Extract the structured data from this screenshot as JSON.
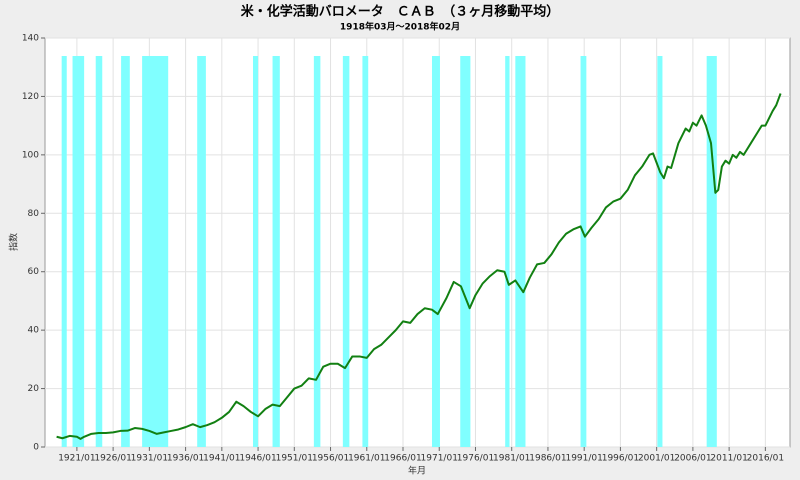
{
  "chart_data": {
    "type": "line",
    "title": "米・化学活動バロメータ　ＣＡＢ　（３ヶ月移動平均）",
    "subtitle": "1918年03月～2018年02月",
    "y_label": "指数",
    "x_label": "年月",
    "color": "#128012",
    "band_color": "#80ffff",
    "grid": true,
    "xlim": [
      1916.6,
      2019.4
    ],
    "ylim": [
      0,
      140
    ],
    "yticks": [
      0,
      20,
      40,
      60,
      80,
      100,
      120,
      140
    ],
    "xticks": [
      {
        "value": 1921,
        "label": "1921/01"
      },
      {
        "value": 1926,
        "label": "1926/01"
      },
      {
        "value": 1931,
        "label": "1931/01"
      },
      {
        "value": 1936,
        "label": "1936/01"
      },
      {
        "value": 1941,
        "label": "1941/01"
      },
      {
        "value": 1946,
        "label": "1946/01"
      },
      {
        "value": 1951,
        "label": "1951/01"
      },
      {
        "value": 1956,
        "label": "1956/01"
      },
      {
        "value": 1961,
        "label": "1961/01"
      },
      {
        "value": 1966,
        "label": "1966/01"
      },
      {
        "value": 1971,
        "label": "1971/01"
      },
      {
        "value": 1976,
        "label": "1976/01"
      },
      {
        "value": 1981,
        "label": "1981/01"
      },
      {
        "value": 1986,
        "label": "1986/01"
      },
      {
        "value": 1991,
        "label": "1991/01"
      },
      {
        "value": 1996,
        "label": "1996/01"
      },
      {
        "value": 2001,
        "label": "2001/01"
      },
      {
        "value": 2006,
        "label": "2006/01"
      },
      {
        "value": 2011,
        "label": "2011/01"
      },
      {
        "value": 2016,
        "label": "2016/01"
      }
    ],
    "shaded_periods": [
      [
        1918.9,
        1919.6
      ],
      [
        1920.4,
        1922.0
      ],
      [
        1923.6,
        1924.5
      ],
      [
        1927.1,
        1928.3
      ],
      [
        1930.0,
        1933.6
      ],
      [
        1937.6,
        1938.8
      ],
      [
        1945.3,
        1946.0
      ],
      [
        1948.0,
        1949.0
      ],
      [
        1953.7,
        1954.6
      ],
      [
        1957.7,
        1958.6
      ],
      [
        1960.4,
        1961.2
      ],
      [
        1970.0,
        1971.1
      ],
      [
        1973.9,
        1975.3
      ],
      [
        1980.1,
        1980.7
      ],
      [
        1981.5,
        1982.9
      ],
      [
        1990.5,
        1991.3
      ],
      [
        2001.1,
        2001.8
      ],
      [
        2007.9,
        2009.3
      ]
    ],
    "x": [
      1918.2,
      1919,
      1920,
      1921,
      1921.5,
      1922,
      1923,
      1924,
      1925,
      1926,
      1927,
      1928,
      1929,
      1930,
      1931,
      1932,
      1933,
      1934,
      1935,
      1936,
      1937,
      1938,
      1939,
      1940,
      1941,
      1942,
      1943,
      1944,
      1945,
      1946,
      1947,
      1948,
      1949,
      1950,
      1951,
      1952,
      1953,
      1954,
      1955,
      1956,
      1957,
      1958,
      1959,
      1960,
      1961,
      1962,
      1963,
      1964,
      1965,
      1966,
      1967,
      1968,
      1969,
      1970,
      1970.8,
      1972,
      1973,
      1974,
      1975.2,
      1976,
      1977,
      1978,
      1979,
      1980,
      1980.6,
      1981.5,
      1982.6,
      1983.5,
      1984.5,
      1985.5,
      1986.5,
      1987.5,
      1988.5,
      1989.5,
      1990.5,
      1991.1,
      1992,
      1993,
      1994,
      1995,
      1996,
      1997,
      1998,
      1999,
      2000,
      2000.5,
      2001.5,
      2002,
      2002.5,
      2003,
      2004,
      2005,
      2005.5,
      2006,
      2006.5,
      2007.2,
      2007.8,
      2008.5,
      2009.1,
      2009.5,
      2010,
      2010.5,
      2011,
      2011.5,
      2012,
      2012.5,
      2013,
      2014,
      2015,
      2015.5,
      2016,
      2017,
      2017.5,
      2018.1
    ],
    "values": [
      3.5,
      3,
      3.8,
      3.5,
      2.8,
      3.5,
      4.5,
      4.8,
      4.8,
      5,
      5.5,
      5.6,
      6.5,
      6.2,
      5.5,
      4.5,
      5,
      5.5,
      6,
      6.8,
      7.8,
      6.8,
      7.5,
      8.5,
      10,
      12,
      15.5,
      14,
      12,
      10.5,
      13,
      14.5,
      14,
      17,
      20,
      21,
      23.5,
      23,
      27.5,
      28.5,
      28.5,
      27,
      31,
      31,
      30.5,
      33.5,
      35,
      37.5,
      40,
      43,
      42.5,
      45.5,
      47.5,
      47,
      45.5,
      51,
      56.5,
      55,
      47.5,
      52,
      56,
      58.5,
      60.5,
      60,
      55.5,
      57,
      53,
      58,
      62.5,
      63,
      66,
      70,
      73,
      74.5,
      75.5,
      72,
      75,
      78,
      82,
      84,
      85,
      88,
      93,
      96,
      100,
      100.5,
      94,
      92,
      96,
      95.5,
      104,
      109,
      108,
      111,
      110,
      113.5,
      110,
      104,
      87,
      88,
      96,
      98,
      97,
      100,
      99,
      101,
      100,
      104,
      108,
      110,
      110,
      115,
      117,
      121
    ]
  }
}
